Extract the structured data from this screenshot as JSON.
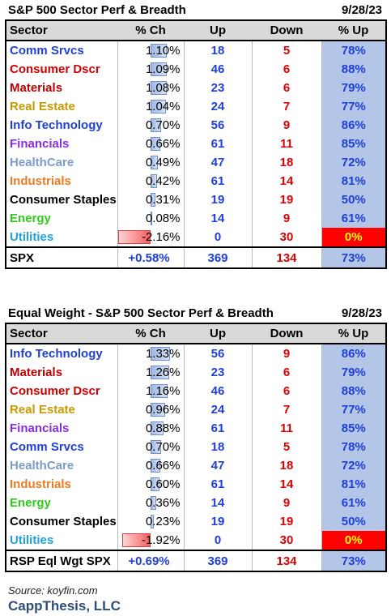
{
  "table1": {
    "title": "S&P 500 Sector Perf & Breadth",
    "date": "9/28/23",
    "headers": [
      "Sector",
      "% Ch",
      "Up",
      "Down",
      "% Up"
    ],
    "rows": [
      {
        "sector": "Comm Srvcs",
        "color": "#1f3fd8",
        "ch": "1.10%",
        "ch_value": 1.1,
        "up": "18",
        "down": "5",
        "pct_up": "78%"
      },
      {
        "sector": "Consumer Dscr",
        "color": "#d00000",
        "ch": "1.09%",
        "ch_value": 1.09,
        "up": "46",
        "down": "6",
        "pct_up": "88%"
      },
      {
        "sector": "Materials",
        "color": "#c00000",
        "ch": "1.08%",
        "ch_value": 1.08,
        "up": "23",
        "down": "6",
        "pct_up": "79%"
      },
      {
        "sector": "Real Estate",
        "color": "#c79a00",
        "ch": "1.04%",
        "ch_value": 1.04,
        "up": "24",
        "down": "7",
        "pct_up": "77%"
      },
      {
        "sector": "Info Technology",
        "color": "#1f3fd8",
        "ch": "0.70%",
        "ch_value": 0.7,
        "up": "56",
        "down": "9",
        "pct_up": "86%"
      },
      {
        "sector": "Financials",
        "color": "#8a2be2",
        "ch": "0.66%",
        "ch_value": 0.66,
        "up": "61",
        "down": "11",
        "pct_up": "85%"
      },
      {
        "sector": "HealthCare",
        "color": "#7a9cc8",
        "ch": "0.49%",
        "ch_value": 0.49,
        "up": "47",
        "down": "18",
        "pct_up": "72%"
      },
      {
        "sector": "Industrials",
        "color": "#e97b20",
        "ch": "0.42%",
        "ch_value": 0.42,
        "up": "61",
        "down": "14",
        "pct_up": "81%"
      },
      {
        "sector": "Consumer Staples",
        "color": "#000000",
        "ch": "0.31%",
        "ch_value": 0.31,
        "up": "19",
        "down": "19",
        "pct_up": "50%"
      },
      {
        "sector": "Energy",
        "color": "#2ecc1a",
        "ch": "0.08%",
        "ch_value": 0.08,
        "up": "14",
        "down": "9",
        "pct_up": "61%"
      },
      {
        "sector": "Utilities",
        "color": "#1ea0e0",
        "ch": "-2.16%",
        "ch_value": -2.16,
        "up": "0",
        "down": "30",
        "pct_up": "0%"
      }
    ],
    "total": {
      "label": "SPX",
      "ch": "+0.58%",
      "up": "369",
      "down": "134",
      "pct_up": "73%"
    }
  },
  "table2": {
    "title": "Equal Weight - S&P 500 Sector Perf & Breadth",
    "date": "9/28/23",
    "headers": [
      "Sector",
      "% Ch",
      "Up",
      "Down",
      "% Up"
    ],
    "rows": [
      {
        "sector": "Info Technology",
        "color": "#1f3fd8",
        "ch": "1.33%",
        "ch_value": 1.33,
        "up": "56",
        "down": "9",
        "pct_up": "86%"
      },
      {
        "sector": "Materials",
        "color": "#c00000",
        "ch": "1.26%",
        "ch_value": 1.26,
        "up": "23",
        "down": "6",
        "pct_up": "79%"
      },
      {
        "sector": "Consumer Dscr",
        "color": "#d00000",
        "ch": "1.16%",
        "ch_value": 1.16,
        "up": "46",
        "down": "6",
        "pct_up": "88%"
      },
      {
        "sector": "Real Estate",
        "color": "#c79a00",
        "ch": "0.96%",
        "ch_value": 0.96,
        "up": "24",
        "down": "7",
        "pct_up": "77%"
      },
      {
        "sector": "Financials",
        "color": "#8a2be2",
        "ch": "0.88%",
        "ch_value": 0.88,
        "up": "61",
        "down": "11",
        "pct_up": "85%"
      },
      {
        "sector": "Comm Srvcs",
        "color": "#1f3fd8",
        "ch": "0.70%",
        "ch_value": 0.7,
        "up": "18",
        "down": "5",
        "pct_up": "78%"
      },
      {
        "sector": "HealthCare",
        "color": "#7a9cc8",
        "ch": "0.66%",
        "ch_value": 0.66,
        "up": "47",
        "down": "18",
        "pct_up": "72%"
      },
      {
        "sector": "Industrials",
        "color": "#e97b20",
        "ch": "0.60%",
        "ch_value": 0.6,
        "up": "61",
        "down": "14",
        "pct_up": "81%"
      },
      {
        "sector": "Energy",
        "color": "#2ecc1a",
        "ch": "0.36%",
        "ch_value": 0.36,
        "up": "14",
        "down": "9",
        "pct_up": "61%"
      },
      {
        "sector": "Consumer Staples",
        "color": "#000000",
        "ch": "0.23%",
        "ch_value": 0.23,
        "up": "19",
        "down": "19",
        "pct_up": "50%"
      },
      {
        "sector": "Utilities",
        "color": "#1ea0e0",
        "ch": "-1.92%",
        "ch_value": -1.92,
        "up": "0",
        "down": "30",
        "pct_up": "0%"
      }
    ],
    "total": {
      "label": "RSP Eql Wgt SPX",
      "ch": "+0.69%",
      "up": "369",
      "down": "134",
      "pct_up": "73%"
    }
  },
  "footer": {
    "source": "Source: koyfin.com",
    "brand": "CappThesis, LLC"
  }
}
